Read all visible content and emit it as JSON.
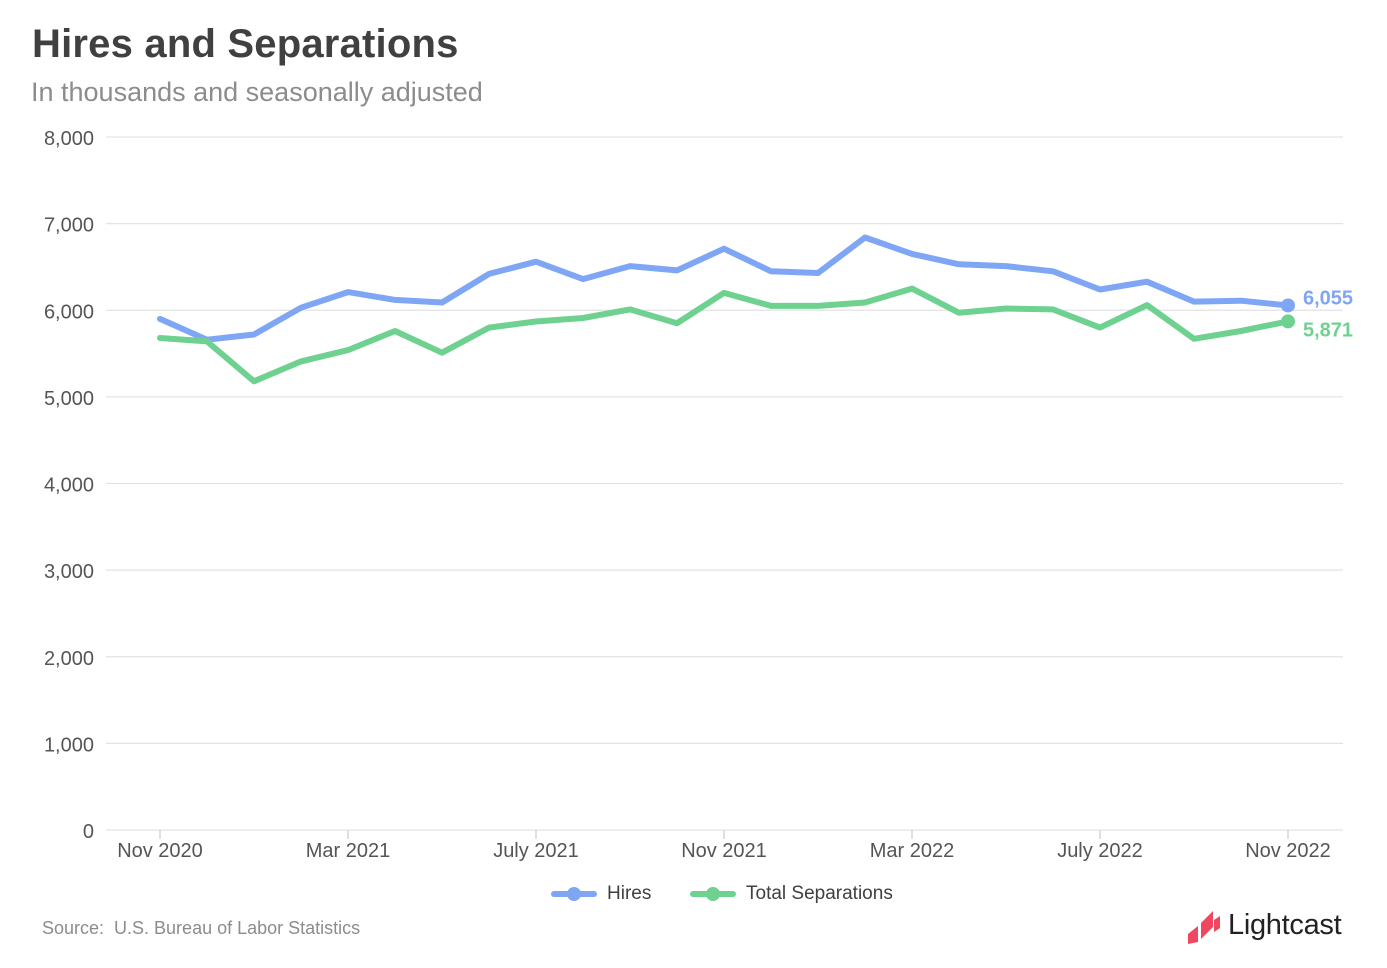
{
  "header": {
    "title": "Hires and Separations",
    "subtitle": "In thousands and seasonally adjusted"
  },
  "footer": {
    "source": "Source:  U.S. Bureau of Labor Statistics",
    "brand": "Lightcast"
  },
  "colors": {
    "hires": "#7fa6f5",
    "separations": "#6fd190",
    "grid": "#e3e3e3",
    "axis_text": "#555555",
    "brand_mark": "#f0465f"
  },
  "chart_data": {
    "type": "line",
    "title": "Hires and Separations",
    "subtitle": "In thousands and seasonally adjusted",
    "x": [
      "Nov 2020",
      "Dec 2020",
      "Jan 2021",
      "Feb 2021",
      "Mar 2021",
      "Apr 2021",
      "May 2021",
      "Jun 2021",
      "Jul 2021",
      "Aug 2021",
      "Sep 2021",
      "Oct 2021",
      "Nov 2021",
      "Dec 2021",
      "Jan 2022",
      "Feb 2022",
      "Mar 2022",
      "Apr 2022",
      "May 2022",
      "Jun 2022",
      "Jul 2022",
      "Aug 2022",
      "Sep 2022",
      "Oct 2022",
      "Nov 2022"
    ],
    "x_tick_labels": [
      "Nov 2020",
      "Mar 2021",
      "July 2021",
      "Nov 2021",
      "Mar 2022",
      "July 2022",
      "Nov 2022"
    ],
    "x_tick_indices": [
      0,
      4,
      8,
      12,
      16,
      20,
      24
    ],
    "y_ticks": [
      0,
      1000,
      2000,
      3000,
      4000,
      5000,
      6000,
      7000,
      8000
    ],
    "y_tick_labels": [
      "0",
      "1,000",
      "2,000",
      "3,000",
      "4,000",
      "5,000",
      "6,000",
      "7,000",
      "8,000"
    ],
    "ylim": [
      0,
      8000
    ],
    "grid": true,
    "legend_position": "bottom-center",
    "series": [
      {
        "name": "Hires",
        "color": "#7fa6f5",
        "values": [
          5900,
          5660,
          5720,
          6030,
          6210,
          6120,
          6090,
          6420,
          6560,
          6360,
          6510,
          6460,
          6710,
          6450,
          6430,
          6840,
          6650,
          6530,
          6510,
          6450,
          6240,
          6330,
          6100,
          6110,
          6055
        ],
        "end_label": "6,055"
      },
      {
        "name": "Total Separations",
        "color": "#6fd190",
        "values": [
          5680,
          5640,
          5180,
          5410,
          5540,
          5760,
          5510,
          5800,
          5870,
          5910,
          6010,
          5850,
          6200,
          6050,
          6050,
          6090,
          6250,
          5970,
          6020,
          6010,
          5800,
          6060,
          5670,
          5760,
          5871
        ],
        "end_label": "5,871"
      }
    ]
  }
}
